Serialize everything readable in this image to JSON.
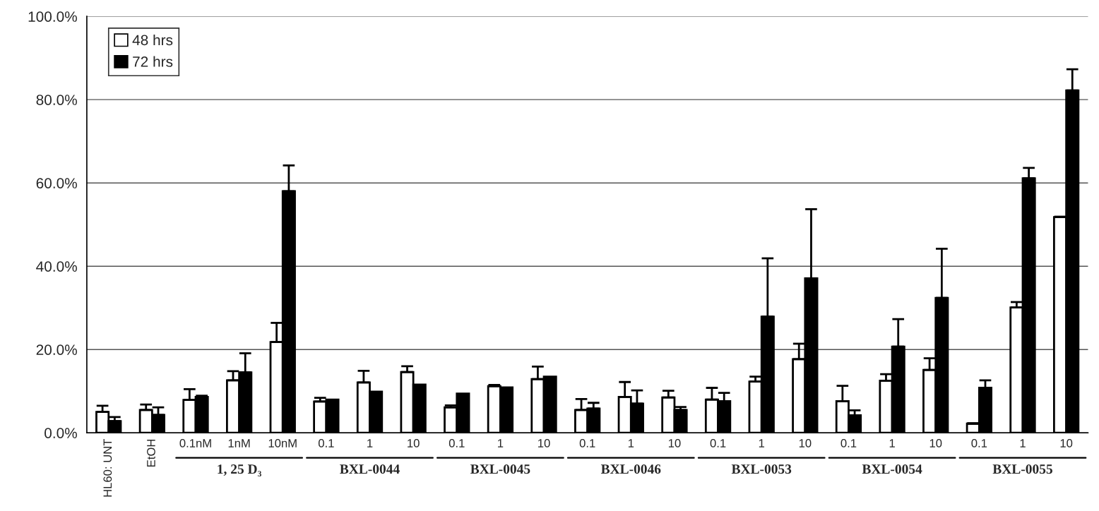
{
  "chart_data": {
    "type": "bar",
    "categories": [
      "HL60: UNT",
      "EtOH",
      "0.1nM",
      "1nM",
      "10nM",
      "0.1",
      "1",
      "10",
      "0.1",
      "1",
      "10",
      "0.1",
      "1",
      "10",
      "0.1",
      "1",
      "10",
      "0.1",
      "1",
      "10",
      "0.1",
      "1",
      "10"
    ],
    "series": [
      {
        "name": "48 hrs",
        "color": "#ffffff",
        "values": [
          5.0,
          5.5,
          7.9,
          12.6,
          21.8,
          7.5,
          12.1,
          14.6,
          6.1,
          11.2,
          12.9,
          5.5,
          8.6,
          8.5,
          8.0,
          12.3,
          17.7,
          7.6,
          12.5,
          15.1,
          2.2,
          30.1,
          51.8
        ],
        "errors": [
          [
            5.0,
            6.5
          ],
          [
            5.5,
            6.8
          ],
          [
            7.9,
            10.5
          ],
          [
            12.6,
            14.8
          ],
          [
            21.8,
            26.4
          ],
          [
            7.5,
            8.4
          ],
          [
            12.1,
            14.9
          ],
          [
            14.6,
            16.0
          ],
          [
            6.1,
            6.6
          ],
          [
            11.2,
            11.5
          ],
          [
            12.9,
            15.9
          ],
          [
            5.5,
            8.1
          ],
          [
            8.6,
            12.2
          ],
          [
            8.5,
            10.1
          ],
          [
            8.0,
            10.8
          ],
          [
            12.3,
            13.5
          ],
          [
            17.7,
            21.4
          ],
          [
            7.6,
            11.3
          ],
          [
            12.5,
            14.1
          ],
          [
            15.1,
            17.9
          ],
          [
            2.2,
            2.3
          ],
          [
            30.1,
            31.4
          ],
          [
            51.8,
            51.9
          ]
        ]
      },
      {
        "name": "72 hrs",
        "color": "#000000",
        "values": [
          2.8,
          4.3,
          8.6,
          14.5,
          58.0,
          8.0,
          9.9,
          11.6,
          9.4,
          10.9,
          13.5,
          5.8,
          7.0,
          5.5,
          7.6,
          27.9,
          37.1,
          4.2,
          20.7,
          32.4,
          10.8,
          61.1,
          82.2
        ],
        "errors": [
          [
            2.8,
            3.8
          ],
          [
            4.3,
            6.1
          ],
          [
            8.6,
            8.9
          ],
          [
            14.5,
            19.1
          ],
          [
            58.0,
            64.2
          ],
          null,
          null,
          null,
          null,
          null,
          null,
          [
            5.8,
            7.2
          ],
          [
            7.0,
            10.2
          ],
          [
            5.5,
            6.2
          ],
          [
            7.6,
            9.6
          ],
          [
            27.9,
            41.9
          ],
          [
            37.1,
            53.7
          ],
          [
            4.2,
            5.4
          ],
          [
            20.7,
            27.3
          ],
          [
            32.4,
            44.2
          ],
          [
            10.8,
            12.6
          ],
          [
            61.1,
            63.6
          ],
          [
            82.2,
            87.3
          ]
        ]
      }
    ],
    "annotations": [
      "1, 25 D₃",
      "BXL-0044",
      "BXL-0045",
      "BXL-0046",
      "BXL-0053",
      "BXL-0054",
      "BXL-0055"
    ],
    "ylim": [
      0,
      100
    ],
    "yticks": [
      {
        "value": 0,
        "label": "0.0%"
      },
      {
        "value": 20,
        "label": "20.0%"
      },
      {
        "value": 40,
        "label": "40.0%"
      },
      {
        "value": 60,
        "label": "60.0%"
      },
      {
        "value": 80,
        "label": "80.0%"
      },
      {
        "value": 100,
        "label": "100.0%"
      }
    ],
    "grid": "y",
    "legend": "top left"
  }
}
